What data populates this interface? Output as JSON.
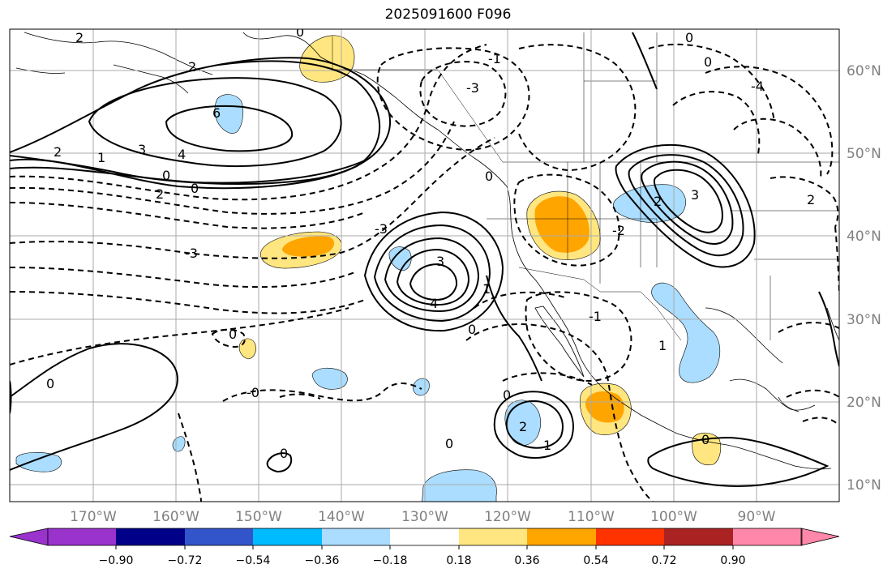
{
  "title": "2025091600 F096",
  "longitude_labels": [
    "170°W",
    "160°W",
    "150°W",
    "140°W",
    "130°W",
    "120°W",
    "110°W",
    "100°W",
    "90°W"
  ],
  "latitude_labels": [
    "60°N",
    "50°N",
    "40°N",
    "30°N",
    "20°N",
    "10°N"
  ],
  "colorbar": {
    "ticks": [
      "−0.90",
      "−0.72",
      "−0.54",
      "−0.36",
      "−0.18",
      "0.18",
      "0.36",
      "0.54",
      "0.72",
      "0.90"
    ],
    "colors": [
      "#9933cc",
      "#000088",
      "#3355cc",
      "#00bbff",
      "#aaddff",
      "#ffffff",
      "#ffe680",
      "#ffa500",
      "#ff3300",
      "#aa2222",
      "#ff88aa"
    ]
  },
  "contour_labels": [
    "2",
    "0",
    "2",
    "6",
    "3",
    "4",
    "2",
    "1",
    "0",
    "2",
    "0",
    "-3",
    "0",
    "-3",
    "-1",
    "-3",
    "3",
    "4",
    "1",
    "0",
    "0",
    "-0",
    "0",
    "0",
    "0",
    "2",
    "1",
    "0",
    "0",
    "2",
    "3",
    "2",
    "-2",
    "1",
    "-1",
    "-4",
    "0",
    "0"
  ],
  "fill_colors": {
    "light_blue": "#aaddff",
    "yellow": "#ffe680",
    "orange": "#ffa500"
  }
}
